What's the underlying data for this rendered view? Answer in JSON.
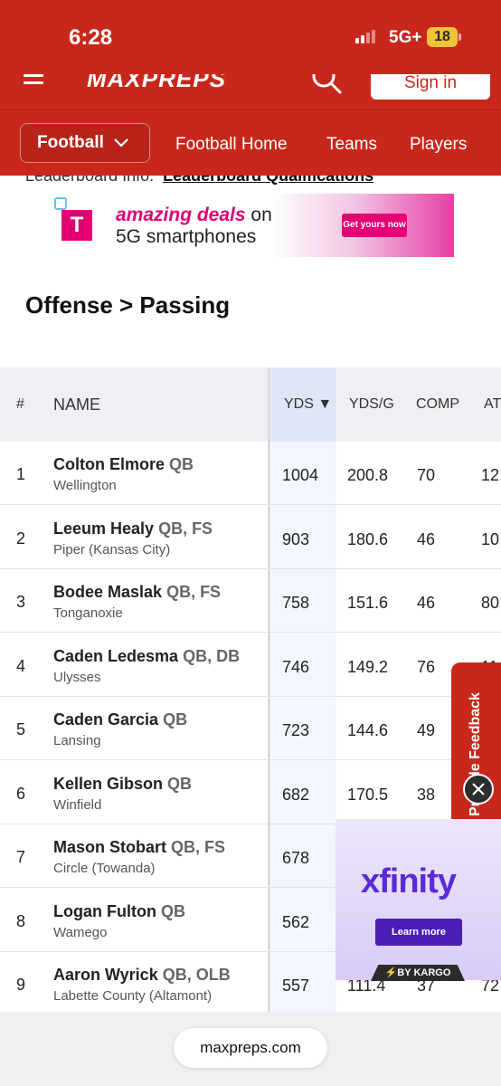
{
  "status_bar": {
    "time": "6:28",
    "network": "5G+",
    "battery": "18"
  },
  "header": {
    "logo": "MAXPREPS",
    "sign_in": "Sign in"
  },
  "nav": {
    "sport": "Football",
    "links": [
      "Football Home",
      "Teams",
      "Players"
    ]
  },
  "info_line": {
    "label": "Leaderboard Info:",
    "link": "Leaderboard Qualifications"
  },
  "ad_top": {
    "line1_emph": "amazing deals",
    "line1_rest": " on",
    "line2": "5G smartphones",
    "cta": "Get yours now",
    "brand_letter": "T"
  },
  "section_title": "Offense > Passing",
  "table": {
    "headers": {
      "rank": "#",
      "name": "NAME",
      "yds": "YDS ▼",
      "ydsg": "YDS/G",
      "comp": "COMP",
      "att": "AT"
    },
    "rows": [
      {
        "rank": "1",
        "name": "Colton Elmore",
        "pos": "QB",
        "school": "Wellington",
        "yds": "1004",
        "ydsg": "200.8",
        "comp": "70",
        "att": "12"
      },
      {
        "rank": "2",
        "name": "Leeum Healy",
        "pos": "QB, FS",
        "school": "Piper (Kansas City)",
        "yds": "903",
        "ydsg": "180.6",
        "comp": "46",
        "att": "10"
      },
      {
        "rank": "3",
        "name": "Bodee Maslak",
        "pos": "QB, FS",
        "school": "Tonganoxie",
        "yds": "758",
        "ydsg": "151.6",
        "comp": "46",
        "att": "80"
      },
      {
        "rank": "4",
        "name": "Caden Ledesma",
        "pos": "QB, DB",
        "school": "Ulysses",
        "yds": "746",
        "ydsg": "149.2",
        "comp": "76",
        "att": "11"
      },
      {
        "rank": "5",
        "name": "Caden Garcia",
        "pos": "QB",
        "school": "Lansing",
        "yds": "723",
        "ydsg": "144.6",
        "comp": "49",
        "att": ""
      },
      {
        "rank": "6",
        "name": "Kellen Gibson",
        "pos": "QB",
        "school": "Winfield",
        "yds": "682",
        "ydsg": "170.5",
        "comp": "38",
        "att": ""
      },
      {
        "rank": "7",
        "name": "Mason Stobart",
        "pos": "QB, FS",
        "school": "Circle (Towanda)",
        "yds": "678",
        "ydsg": "",
        "comp": "",
        "att": ""
      },
      {
        "rank": "8",
        "name": "Logan Fulton",
        "pos": "QB",
        "school": "Wamego",
        "yds": "562",
        "ydsg": "",
        "comp": "",
        "att": ""
      },
      {
        "rank": "9",
        "name": "Aaron Wyrick",
        "pos": "QB, OLB",
        "school": "Labette County (Altamont)",
        "yds": "557",
        "ydsg": "111.4",
        "comp": "37",
        "att": "72"
      }
    ]
  },
  "feedback_tab": {
    "label": "Provide Feedback"
  },
  "ad_bottom": {
    "brand": "xfinity",
    "cta": "Learn more",
    "badge": "⚡BY KARGO"
  },
  "browser": {
    "url": "maxpreps.com"
  },
  "colors": {
    "brand_red": "#c8281c",
    "yds_highlight": "#e9effa",
    "tmobile_magenta": "#e20074",
    "xfinity_purple": "#5b2bd4"
  }
}
